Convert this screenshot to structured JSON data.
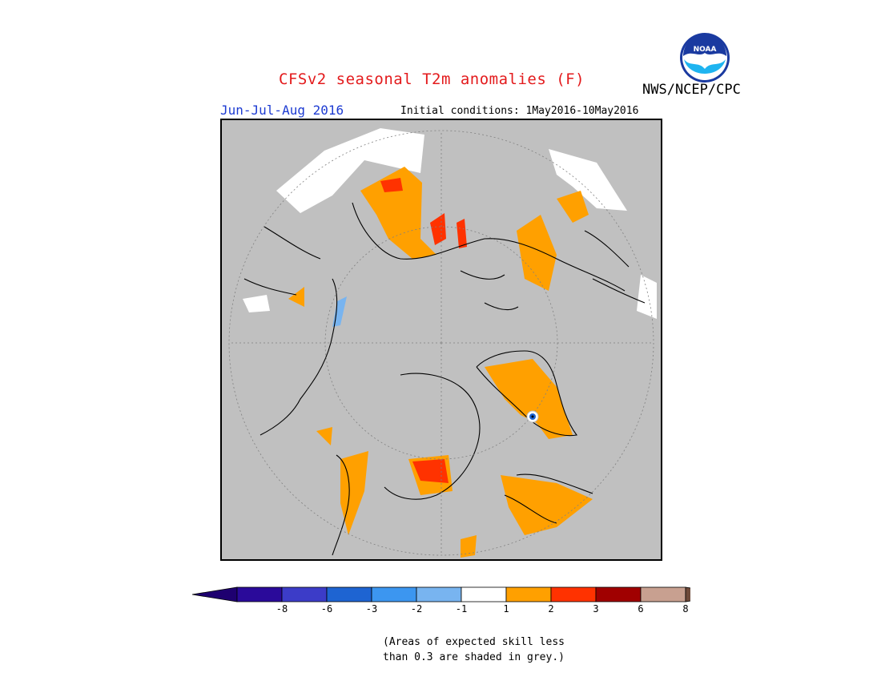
{
  "header": {
    "title": "CFSv2 seasonal T2m anomalies (F)",
    "season": "Jun-Jul-Aug 2016",
    "initial_conditions": "Initial conditions: 1May2016-10May2016",
    "agency": "NWS/NCEP/CPC",
    "logo_text": "NOAA",
    "logo_icon": "noaa-logo-icon"
  },
  "map": {
    "projection": "north polar stereographic",
    "background_color": "#c0c0c0",
    "coastline_color": "#000000"
  },
  "legend": {
    "bins": [
      {
        "label": "-8",
        "color": "#2a0a9a"
      },
      {
        "label": "-6",
        "color": "#3c3cc8"
      },
      {
        "label": "-3",
        "color": "#1e64d2"
      },
      {
        "label": "-2",
        "color": "#3c96f0"
      },
      {
        "label": "-1",
        "color": "#78b4f0"
      },
      {
        "label": "1",
        "color": "#ffffff"
      },
      {
        "label": "2",
        "color": "#ffa000"
      },
      {
        "label": "3",
        "color": "#ff3200"
      },
      {
        "label": "6",
        "color": "#a00000"
      },
      {
        "label": "8",
        "color": "#c8a090"
      }
    ],
    "low_end_color": "#1e0070",
    "high_end_color": "#6e4a3a"
  },
  "note": {
    "line1": "(Areas of expected skill less",
    "line2": "than 0.3 are shaded in grey.)"
  }
}
